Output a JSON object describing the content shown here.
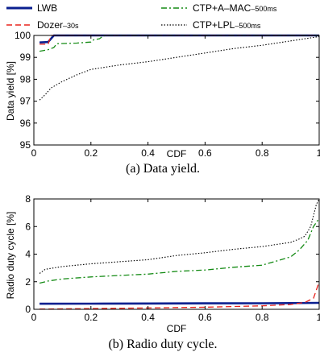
{
  "legend": {
    "lwb": {
      "name": "LWB",
      "sub": ""
    },
    "dozer": {
      "name": "Dozer",
      "sub": "–30s"
    },
    "ctp_amac": {
      "name": "CTP+A–MAC",
      "sub": "–500ms"
    },
    "ctp_lpl": {
      "name": "CTP+LPL",
      "sub": "–500ms"
    }
  },
  "colors": {
    "lwb": "#0a1f8f",
    "dozer": "#e8221c",
    "ctp_amac": "#138a13",
    "ctp_lpl": "#000000"
  },
  "chart_data": [
    {
      "type": "line",
      "caption": "(a)  Data yield.",
      "xlabel": "CDF",
      "ylabel": "Data yield [%]",
      "xlim": [
        0,
        1
      ],
      "ylim": [
        95,
        100
      ],
      "xticks": [
        "0",
        "0.2",
        "0.4",
        "0.6",
        "0.8",
        "1"
      ],
      "yticks": [
        "95",
        "96",
        "97",
        "98",
        "99",
        "100"
      ],
      "grid": false,
      "legend_position": "above plot",
      "series": [
        {
          "name": "LWB",
          "x": [
            0.02,
            0.05,
            0.07,
            0.1,
            0.3,
            0.6,
            1.0
          ],
          "y": [
            99.68,
            99.7,
            100,
            100,
            100,
            100,
            100
          ]
        },
        {
          "name": "Dozer",
          "x": [
            0.02,
            0.05,
            0.06,
            0.1,
            0.3,
            0.6,
            1.0
          ],
          "y": [
            99.6,
            99.6,
            100,
            100,
            100,
            100,
            100
          ]
        },
        {
          "name": "CTP+A-MAC",
          "x": [
            0.02,
            0.05,
            0.07,
            0.08,
            0.15,
            0.2,
            0.21,
            0.23,
            0.24,
            0.25,
            0.5,
            1.0
          ],
          "y": [
            99.28,
            99.35,
            99.45,
            99.62,
            99.65,
            99.7,
            99.8,
            99.85,
            99.95,
            100,
            100,
            100
          ]
        },
        {
          "name": "CTP+LPL",
          "x": [
            0.02,
            0.04,
            0.06,
            0.1,
            0.15,
            0.2,
            0.3,
            0.4,
            0.5,
            0.6,
            0.7,
            0.8,
            0.9,
            0.95,
            1.0
          ],
          "y": [
            97.05,
            97.3,
            97.6,
            97.9,
            98.2,
            98.45,
            98.65,
            98.8,
            99.0,
            99.2,
            99.4,
            99.55,
            99.75,
            99.85,
            99.95
          ]
        }
      ]
    },
    {
      "type": "line",
      "caption": "(b)  Radio duty cycle.",
      "xlabel": "CDF",
      "ylabel": "Radio duty cycle [%]",
      "xlim": [
        0,
        1
      ],
      "ylim": [
        0,
        8
      ],
      "xticks": [
        "0",
        "0.2",
        "0.4",
        "0.6",
        "0.8",
        "1"
      ],
      "yticks": [
        "0",
        "2",
        "4",
        "6",
        "8"
      ],
      "grid": false,
      "series": [
        {
          "name": "LWB",
          "x": [
            0.02,
            0.2,
            0.4,
            0.6,
            0.8,
            0.9,
            1.0
          ],
          "y": [
            0.4,
            0.41,
            0.42,
            0.43,
            0.44,
            0.45,
            0.47
          ]
        },
        {
          "name": "Dozer",
          "x": [
            0.02,
            0.2,
            0.4,
            0.6,
            0.8,
            0.9,
            0.95,
            0.98,
            1.0
          ],
          "y": [
            0.02,
            0.05,
            0.1,
            0.15,
            0.25,
            0.35,
            0.5,
            0.8,
            2.0
          ]
        },
        {
          "name": "CTP+A-MAC",
          "x": [
            0.02,
            0.05,
            0.1,
            0.2,
            0.3,
            0.4,
            0.5,
            0.6,
            0.7,
            0.8,
            0.85,
            0.9,
            0.93,
            0.96,
            0.98,
            1.0
          ],
          "y": [
            1.9,
            2.05,
            2.2,
            2.35,
            2.45,
            2.55,
            2.75,
            2.85,
            3.05,
            3.2,
            3.5,
            3.8,
            4.3,
            5.0,
            6.0,
            6.6
          ]
        },
        {
          "name": "CTP+LPL",
          "x": [
            0.02,
            0.04,
            0.1,
            0.2,
            0.3,
            0.4,
            0.5,
            0.6,
            0.7,
            0.8,
            0.85,
            0.9,
            0.93,
            0.95,
            0.97,
            0.99,
            1.0
          ],
          "y": [
            2.6,
            2.9,
            3.1,
            3.3,
            3.45,
            3.6,
            3.9,
            4.1,
            4.35,
            4.55,
            4.7,
            4.85,
            5.1,
            5.3,
            6.0,
            7.6,
            8.0
          ]
        }
      ]
    }
  ]
}
